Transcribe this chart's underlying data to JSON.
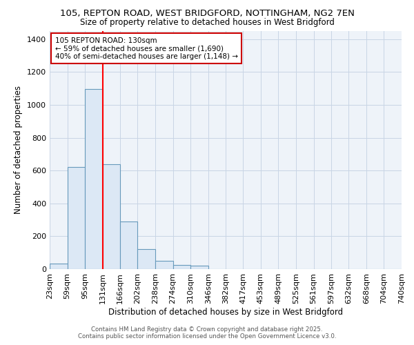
{
  "title1": "105, REPTON ROAD, WEST BRIDGFORD, NOTTINGHAM, NG2 7EN",
  "title2": "Size of property relative to detached houses in West Bridgford",
  "xlabel": "Distribution of detached houses by size in West Bridgford",
  "ylabel": "Number of detached properties",
  "bin_labels": [
    "23sqm",
    "59sqm",
    "95sqm",
    "131sqm",
    "166sqm",
    "202sqm",
    "238sqm",
    "274sqm",
    "310sqm",
    "346sqm",
    "382sqm",
    "417sqm",
    "453sqm",
    "489sqm",
    "525sqm",
    "561sqm",
    "597sqm",
    "632sqm",
    "668sqm",
    "704sqm",
    "740sqm"
  ],
  "bin_edges": [
    23,
    59,
    95,
    131,
    166,
    202,
    238,
    274,
    310,
    346,
    382,
    417,
    453,
    489,
    525,
    561,
    597,
    632,
    668,
    704,
    740
  ],
  "bar_heights": [
    35,
    620,
    1095,
    640,
    290,
    120,
    50,
    25,
    20,
    0,
    0,
    0,
    0,
    0,
    0,
    0,
    0,
    0,
    0,
    0
  ],
  "bar_color": "#dce8f5",
  "bar_edge_color": "#6699bb",
  "red_line_x": 131,
  "ylim": [
    0,
    1450
  ],
  "annotation_title": "105 REPTON ROAD: 130sqm",
  "annotation_line2": "← 59% of detached houses are smaller (1,690)",
  "annotation_line3": "40% of semi-detached houses are larger (1,148) →",
  "annotation_box_color": "#ffffff",
  "annotation_border_color": "#cc0000",
  "footer1": "Contains HM Land Registry data © Crown copyright and database right 2025.",
  "footer2": "Contains public sector information licensed under the Open Government Licence v3.0.",
  "bg_color": "#ffffff",
  "plot_bg_color": "#eef3f9",
  "grid_color": "#c8d5e5"
}
